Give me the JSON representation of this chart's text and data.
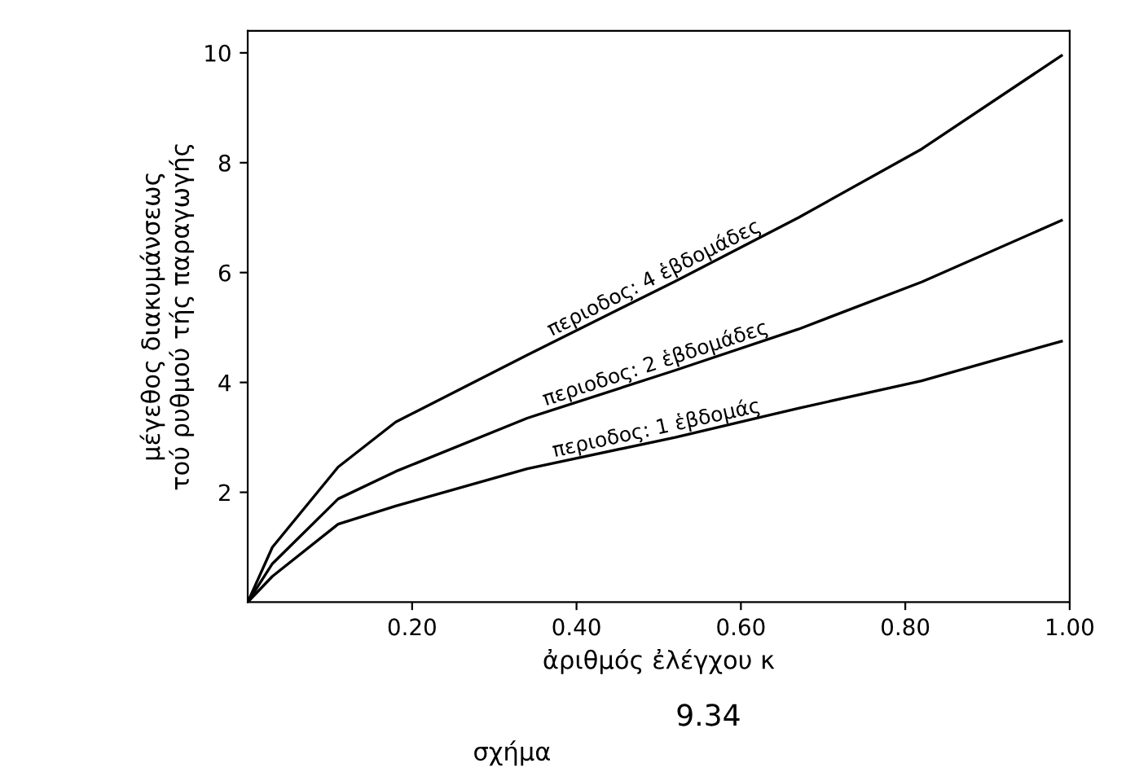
{
  "chart_data": {
    "type": "line",
    "xlabel": "ἀριθμός ἐλέγχου κ",
    "ylabel": "μέγεθος διακυμάνσεως\nτού ρυθμού τής παραγωγής",
    "x": [
      0,
      0.03,
      0.11,
      0.18,
      0.34,
      0.52,
      0.67,
      0.82,
      0.99
    ],
    "series": [
      {
        "name": "περιοδος: 4 ἑβδομάδες",
        "color": "#000000",
        "values": [
          0,
          1.0,
          2.46,
          3.28,
          4.5,
          5.84,
          7.0,
          8.25,
          9.95
        ]
      },
      {
        "name": "περιοδος: 2 ἑβδομάδες",
        "color": "#000000",
        "values": [
          0,
          0.7,
          1.88,
          2.38,
          3.35,
          4.22,
          4.97,
          5.83,
          6.95
        ]
      },
      {
        "name": "περιοδος: 1 ἑβδομάς",
        "color": "#000000",
        "values": [
          0,
          0.47,
          1.42,
          1.75,
          2.43,
          3.0,
          3.53,
          4.03,
          4.75
        ]
      }
    ],
    "xlim": [
      0,
      1.0
    ],
    "ylim": [
      0,
      10.4
    ],
    "xticks": [
      {
        "value": 0.2,
        "label": "0.20"
      },
      {
        "value": 0.4,
        "label": "0.40"
      },
      {
        "value": 0.6,
        "label": "0.60"
      },
      {
        "value": 0.8,
        "label": "0.80"
      },
      {
        "value": 1.0,
        "label": "1.00"
      }
    ],
    "yticks": [
      2,
      4,
      6,
      8,
      10
    ],
    "annotations": [
      "9.34",
      "σχήμα"
    ],
    "grid": false,
    "legend": false,
    "marker": "none",
    "line_style": "solid"
  }
}
